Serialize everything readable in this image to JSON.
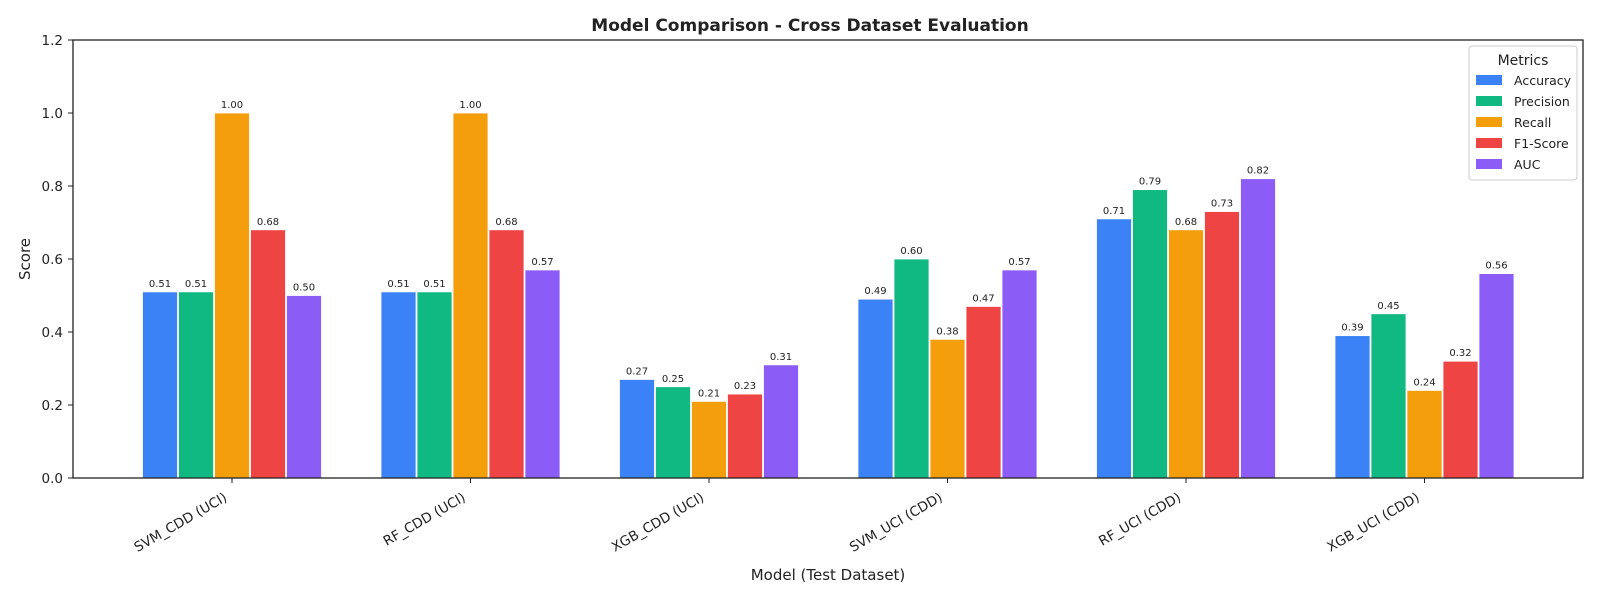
{
  "chart_data": {
    "type": "bar",
    "title": "Model Comparison - Cross Dataset Evaluation",
    "xlabel": "Model (Test Dataset)",
    "ylabel": "Score",
    "ylim": [
      0,
      1.2
    ],
    "yticks": [
      "0.0",
      "0.2",
      "0.4",
      "0.6",
      "0.8",
      "1.0",
      "1.2"
    ],
    "categories": [
      "SVM_CDD (UCI)",
      "RF_CDD (UCI)",
      "XGB_CDD (UCI)",
      "SVM_UCI (CDD)",
      "RF_UCI (CDD)",
      "XGB_UCI (CDD)"
    ],
    "series": [
      {
        "name": "Accuracy",
        "color": "#3b82f6",
        "values": [
          0.51,
          0.51,
          0.27,
          0.49,
          0.71,
          0.39
        ],
        "labels": [
          "0.51",
          "0.51",
          "0.27",
          "0.49",
          "0.71",
          "0.39"
        ]
      },
      {
        "name": "Precision",
        "color": "#10b981",
        "values": [
          0.51,
          0.51,
          0.25,
          0.6,
          0.79,
          0.45
        ],
        "labels": [
          "0.51",
          "0.51",
          "0.25",
          "0.60",
          "0.79",
          "0.45"
        ]
      },
      {
        "name": "Recall",
        "color": "#f59e0b",
        "values": [
          1.0,
          1.0,
          0.21,
          0.38,
          0.68,
          0.24
        ],
        "labels": [
          "1.00",
          "1.00",
          "0.21",
          "0.38",
          "0.68",
          "0.24"
        ]
      },
      {
        "name": "F1-Score",
        "color": "#ef4444",
        "values": [
          0.68,
          0.68,
          0.23,
          0.47,
          0.73,
          0.32
        ],
        "labels": [
          "0.68",
          "0.68",
          "0.23",
          "0.47",
          "0.73",
          "0.32"
        ]
      },
      {
        "name": "AUC",
        "color": "#8b5cf6",
        "values": [
          0.5,
          0.57,
          0.31,
          0.57,
          0.82,
          0.56
        ],
        "labels": [
          "0.50",
          "0.57",
          "0.31",
          "0.57",
          "0.82",
          "0.56"
        ]
      }
    ],
    "legend": {
      "title": "Metrics",
      "position": "top-right"
    },
    "grid": false
  }
}
